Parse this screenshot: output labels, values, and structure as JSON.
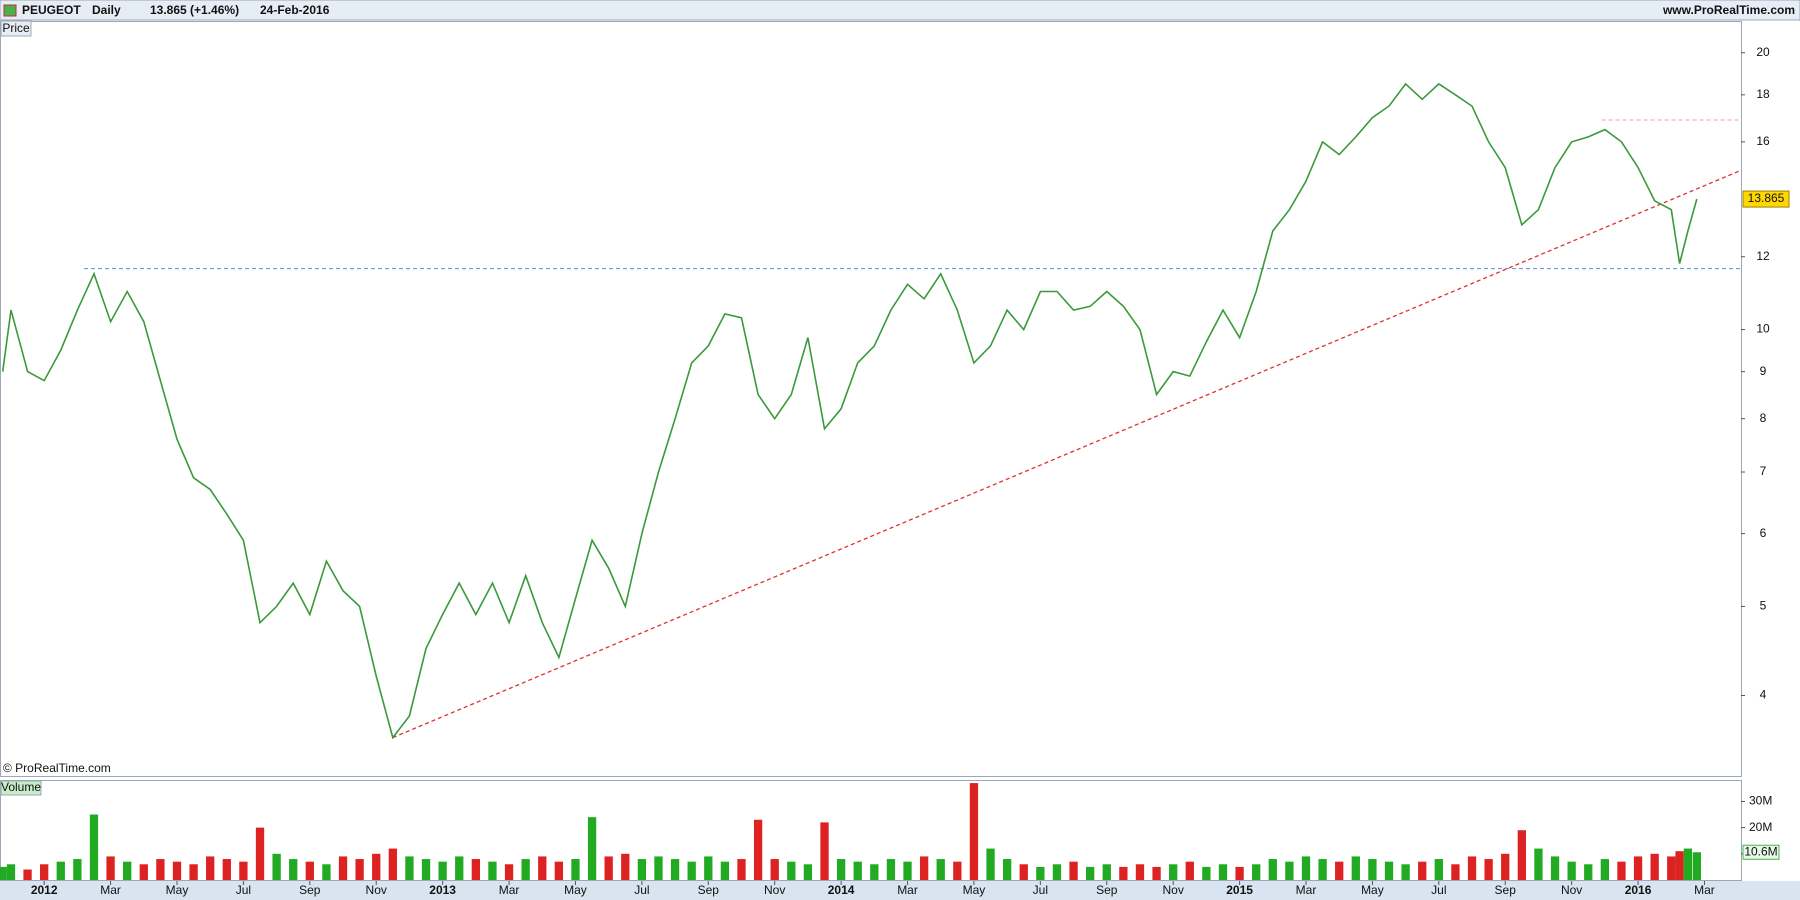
{
  "header": {
    "instrument": "PEUGEOT",
    "period": "Daily",
    "quote": "13.865 (+1.46%)",
    "date": "24-Feb-2016",
    "site": "www.ProRealTime.com",
    "copyright": "© ProRealTime.com"
  },
  "chart_data": [
    {
      "type": "line",
      "title": "Price",
      "log_scale": true,
      "color": "#3a9a3a",
      "x": [
        -1.25,
        -1,
        -0.5,
        0,
        0.5,
        1,
        1.5,
        2,
        2.5,
        3,
        3.5,
        4,
        4.5,
        5,
        5.5,
        6,
        6.5,
        7,
        7.5,
        8,
        8.5,
        9,
        9.5,
        10,
        10.5,
        11,
        11.5,
        12,
        12.5,
        13,
        13.5,
        14,
        14.5,
        15,
        15.5,
        16,
        16.5,
        17,
        17.5,
        18,
        18.5,
        19,
        19.5,
        20,
        20.5,
        21,
        21.5,
        22,
        22.5,
        23,
        23.5,
        24,
        24.5,
        25,
        25.5,
        26,
        26.5,
        27,
        27.5,
        28,
        28.5,
        29,
        29.5,
        30,
        30.5,
        31,
        31.5,
        32,
        32.5,
        33,
        33.5,
        34,
        34.5,
        35,
        35.5,
        36,
        36.5,
        37,
        37.5,
        38,
        38.5,
        39,
        39.5,
        40,
        40.5,
        41,
        41.5,
        42,
        42.5,
        43,
        43.5,
        44,
        44.5,
        45,
        45.5,
        46,
        46.5,
        47,
        47.5,
        48,
        48.5,
        49,
        49.25,
        49.5,
        49.77
      ],
      "values": [
        9.0,
        10.5,
        9.0,
        8.8,
        9.5,
        10.5,
        11.5,
        10.2,
        11.0,
        10.2,
        8.8,
        7.6,
        6.9,
        6.7,
        6.3,
        5.9,
        4.8,
        5.0,
        5.3,
        4.9,
        5.6,
        5.2,
        5.0,
        4.2,
        3.6,
        3.8,
        4.5,
        4.9,
        5.3,
        4.9,
        5.3,
        4.8,
        5.4,
        4.8,
        4.4,
        5.1,
        5.9,
        5.5,
        5.0,
        6.0,
        7.0,
        8.0,
        9.2,
        9.6,
        10.4,
        10.3,
        8.5,
        8.0,
        8.5,
        9.8,
        7.8,
        8.2,
        9.2,
        9.6,
        10.5,
        11.2,
        10.8,
        11.5,
        10.5,
        9.2,
        9.6,
        10.5,
        10.0,
        11.0,
        11.0,
        10.5,
        10.6,
        11.0,
        10.6,
        10.0,
        8.5,
        9.0,
        8.9,
        9.7,
        10.5,
        9.8,
        11.0,
        12.8,
        13.5,
        14.5,
        16.0,
        15.5,
        16.2,
        17.0,
        17.5,
        18.5,
        17.8,
        18.5,
        18.0,
        17.5,
        16.0,
        15.0,
        13.0,
        13.5,
        15.0,
        16.0,
        16.2,
        16.5,
        16.0,
        15.0,
        13.8,
        13.5,
        11.8,
        12.8,
        13.865
      ],
      "xlim": [
        -1.3,
        51.1
      ],
      "ylim": [
        3.27,
        21.6
      ],
      "yticks": [
        4,
        5,
        6,
        7,
        8,
        9,
        10,
        12,
        16,
        18,
        20
      ],
      "hlines": [
        {
          "value": 11.65,
          "from": 1.2,
          "color": "#5b8fd6"
        },
        {
          "value": 16.9,
          "from": 46.9,
          "color": "#e8a0b8"
        }
      ],
      "trendline": {
        "x": [
          10.5,
          51.1
        ],
        "values": [
          3.6,
          14.9
        ],
        "color": "#e03030"
      }
    },
    {
      "type": "bar",
      "title": "Volume",
      "up_color": "#22aa22",
      "down_color": "#dd2222",
      "x": [
        -1.25,
        -1,
        -0.5,
        0,
        0.5,
        1,
        1.5,
        2,
        2.5,
        3,
        3.5,
        4,
        4.5,
        5,
        5.5,
        6,
        6.5,
        7,
        7.5,
        8,
        8.5,
        9,
        9.5,
        10,
        10.5,
        11,
        11.5,
        12,
        12.5,
        13,
        13.5,
        14,
        14.5,
        15,
        15.5,
        16,
        16.5,
        17,
        17.5,
        18,
        18.5,
        19,
        19.5,
        20,
        20.5,
        21,
        21.5,
        22,
        22.5,
        23,
        23.5,
        24,
        24.5,
        25,
        25.5,
        26,
        26.5,
        27,
        27.5,
        28,
        28.5,
        29,
        29.5,
        30,
        30.5,
        31,
        31.5,
        32,
        32.5,
        33,
        33.5,
        34,
        34.5,
        35,
        35.5,
        36,
        36.5,
        37,
        37.5,
        38,
        38.5,
        39,
        39.5,
        40,
        40.5,
        41,
        41.5,
        42,
        42.5,
        43,
        43.5,
        44,
        44.5,
        45,
        45.5,
        46,
        46.5,
        47,
        47.5,
        48,
        48.5,
        49,
        49.25,
        49.5,
        49.77
      ],
      "values": [
        5000000,
        6000000,
        4000000,
        6000000,
        7000000,
        8000000,
        25000000,
        9000000,
        7000000,
        6000000,
        8000000,
        7000000,
        6000000,
        9000000,
        8000000,
        7000000,
        20000000,
        10000000,
        8000000,
        7000000,
        6000000,
        9000000,
        8000000,
        10000000,
        12000000,
        9000000,
        8000000,
        7000000,
        9000000,
        8000000,
        7000000,
        6000000,
        8000000,
        9000000,
        7000000,
        8000000,
        24000000,
        9000000,
        10000000,
        8000000,
        9000000,
        8000000,
        7000000,
        9000000,
        7000000,
        8000000,
        23000000,
        8000000,
        7000000,
        6000000,
        22000000,
        8000000,
        7000000,
        6000000,
        8000000,
        7000000,
        9000000,
        8000000,
        7000000,
        37000000,
        12000000,
        8000000,
        6000000,
        5000000,
        6000000,
        7000000,
        5000000,
        6000000,
        5000000,
        6000000,
        5000000,
        6000000,
        7000000,
        5000000,
        6000000,
        5000000,
        6000000,
        8000000,
        7000000,
        9000000,
        8000000,
        7000000,
        9000000,
        8000000,
        7000000,
        6000000,
        7000000,
        8000000,
        6000000,
        9000000,
        8000000,
        10000000,
        19000000,
        12000000,
        9000000,
        7000000,
        6000000,
        8000000,
        7000000,
        9000000,
        10000000,
        9000000,
        11000000,
        12000000,
        10600000
      ],
      "last_value_label": "10.6M",
      "xlim": [
        -1.3,
        51.1
      ],
      "ylim": [
        0,
        37800000
      ],
      "yticks": [
        {
          "value": 10000000,
          "label": "10M"
        },
        {
          "value": 20000000,
          "label": "20M"
        },
        {
          "value": 30000000,
          "label": "30M"
        }
      ],
      "xticks": [
        {
          "value": 0,
          "label": "2012"
        },
        {
          "value": 2,
          "label": "Mar"
        },
        {
          "value": 4,
          "label": "May"
        },
        {
          "value": 6,
          "label": "Jul"
        },
        {
          "value": 8,
          "label": "Sep"
        },
        {
          "value": 10,
          "label": "Nov"
        },
        {
          "value": 12,
          "label": "2013"
        },
        {
          "value": 14,
          "label": "Mar"
        },
        {
          "value": 16,
          "label": "May"
        },
        {
          "value": 18,
          "label": "Jul"
        },
        {
          "value": 20,
          "label": "Sep"
        },
        {
          "value": 22,
          "label": "Nov"
        },
        {
          "value": 24,
          "label": "2014"
        },
        {
          "value": 26,
          "label": "Mar"
        },
        {
          "value": 28,
          "label": "May"
        },
        {
          "value": 30,
          "label": "Jul"
        },
        {
          "value": 32,
          "label": "Sep"
        },
        {
          "value": 34,
          "label": "Nov"
        },
        {
          "value": 36,
          "label": "2015"
        },
        {
          "value": 38,
          "label": "Mar"
        },
        {
          "value": 40,
          "label": "May"
        },
        {
          "value": 42,
          "label": "Jul"
        },
        {
          "value": 44,
          "label": "Sep"
        },
        {
          "value": 46,
          "label": "Nov"
        },
        {
          "value": 48,
          "label": "2016"
        },
        {
          "value": 50,
          "label": "Mar"
        }
      ]
    }
  ]
}
